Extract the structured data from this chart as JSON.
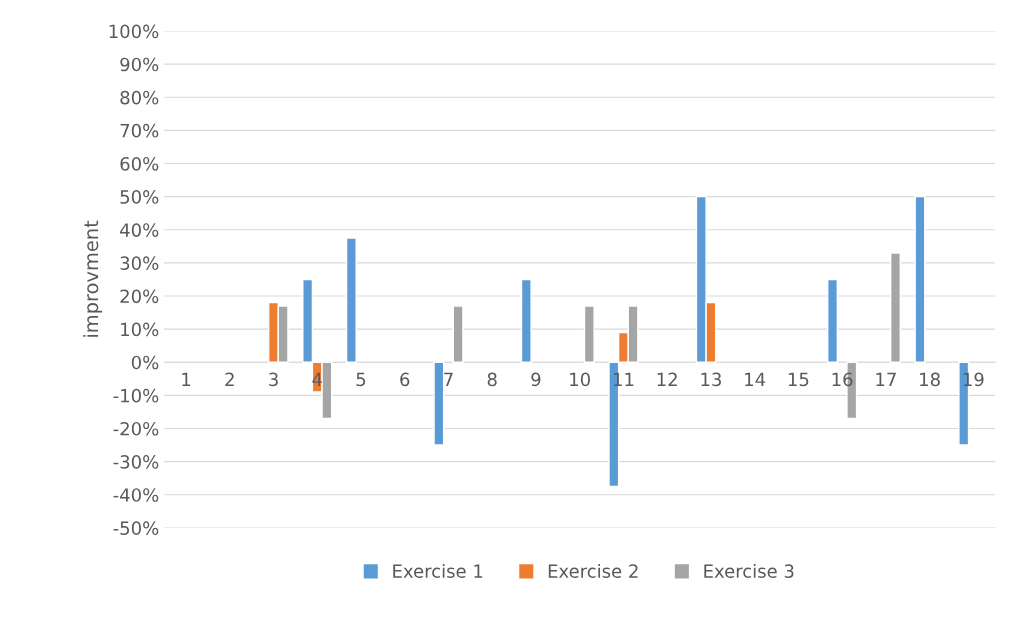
{
  "chart_data": {
    "type": "bar",
    "ylabel": "improvment",
    "categories": [
      "1",
      "2",
      "3",
      "4",
      "5",
      "6",
      "7",
      "8",
      "9",
      "10",
      "11",
      "12",
      "13",
      "14",
      "15",
      "16",
      "17",
      "18",
      "19"
    ],
    "series": [
      {
        "name": "Exercise 1",
        "color": "#5b9bd5",
        "values": [
          null,
          null,
          null,
          25,
          37.5,
          null,
          -25,
          null,
          25,
          null,
          -37.5,
          null,
          50,
          null,
          null,
          25,
          null,
          50,
          -25
        ]
      },
      {
        "name": "Exercise 2",
        "color": "#ed7d31",
        "values": [
          null,
          null,
          18,
          -9,
          null,
          null,
          null,
          null,
          null,
          null,
          9,
          null,
          18,
          null,
          null,
          null,
          null,
          null,
          null
        ]
      },
      {
        "name": "Exercise 3",
        "color": "#a5a5a5",
        "values": [
          null,
          null,
          17,
          -17,
          null,
          null,
          17,
          null,
          null,
          17,
          17,
          null,
          null,
          null,
          null,
          -17,
          33,
          null,
          null
        ]
      }
    ],
    "ylim": [
      -50,
      100
    ],
    "yticks": [
      {
        "value": -50,
        "label": "-50%"
      },
      {
        "value": -40,
        "label": "-40%"
      },
      {
        "value": -30,
        "label": "-30%"
      },
      {
        "value": -20,
        "label": "-20%"
      },
      {
        "value": -10,
        "label": "-10%"
      },
      {
        "value": 0,
        "label": "0%"
      },
      {
        "value": 10,
        "label": "10%"
      },
      {
        "value": 20,
        "label": "20%"
      },
      {
        "value": 30,
        "label": "30%"
      },
      {
        "value": 40,
        "label": "40%"
      },
      {
        "value": 50,
        "label": "50%"
      },
      {
        "value": 60,
        "label": "60%"
      },
      {
        "value": 70,
        "label": "70%"
      },
      {
        "value": 80,
        "label": "80%"
      },
      {
        "value": 90,
        "label": "90%"
      },
      {
        "value": 100,
        "label": "100%"
      }
    ],
    "grid": "y",
    "legend": "bottom"
  }
}
